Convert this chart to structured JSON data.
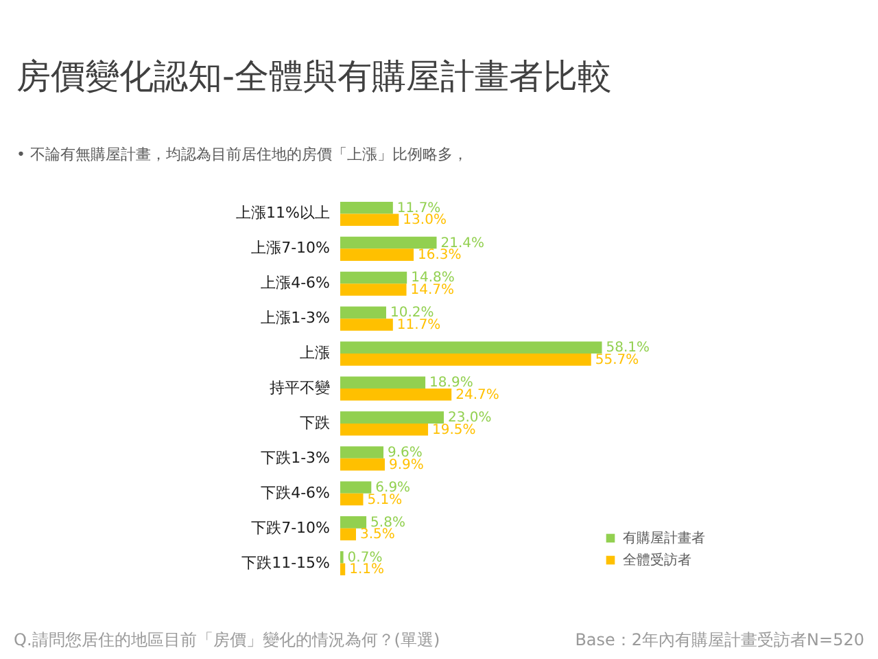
{
  "chart_data": {
    "type": "bar",
    "orientation": "horizontal",
    "title": "房價變化認知-全體與有購屋計畫者比較",
    "subtitle": "• 不論有無購屋計畫，均認為目前居住地的房價「上漲」比例略多，",
    "categories": [
      "上漲11%以上",
      "上漲7-10%",
      "上漲4-6%",
      "上漲1-3%",
      "上漲",
      "持平不變",
      "下跌",
      "下跌1-3%",
      "下跌4-6%",
      "下跌7-10%",
      "下跌11-15%"
    ],
    "series": [
      {
        "name": "有購屋計畫者",
        "color": "#92d050",
        "values": [
          11.7,
          21.4,
          14.8,
          10.2,
          58.1,
          18.9,
          23.0,
          9.6,
          6.9,
          5.8,
          0.7
        ],
        "value_labels": [
          "11.7%",
          "21.4%",
          "14.8%",
          "10.2%",
          "58.1%",
          "18.9%",
          "23.0%",
          "9.6%",
          "6.9%",
          "5.8%",
          "0.7%"
        ]
      },
      {
        "name": "全體受訪者",
        "color": "#ffc000",
        "values": [
          13.0,
          16.3,
          14.7,
          11.7,
          55.7,
          24.7,
          19.5,
          9.9,
          5.1,
          3.5,
          1.1
        ],
        "value_labels": [
          "13.0%",
          "16.3%",
          "14.7%",
          "11.7%",
          "55.7%",
          "24.7%",
          "19.5%",
          "9.9%",
          "5.1%",
          "3.5%",
          "1.1%"
        ]
      }
    ],
    "legend": "bottom right",
    "annotations": [
      "Q.請問您居住的地區目前「房價」變化的情況為何？(單選)",
      "Base：2年內有購屋計畫受訪者N=520"
    ]
  }
}
